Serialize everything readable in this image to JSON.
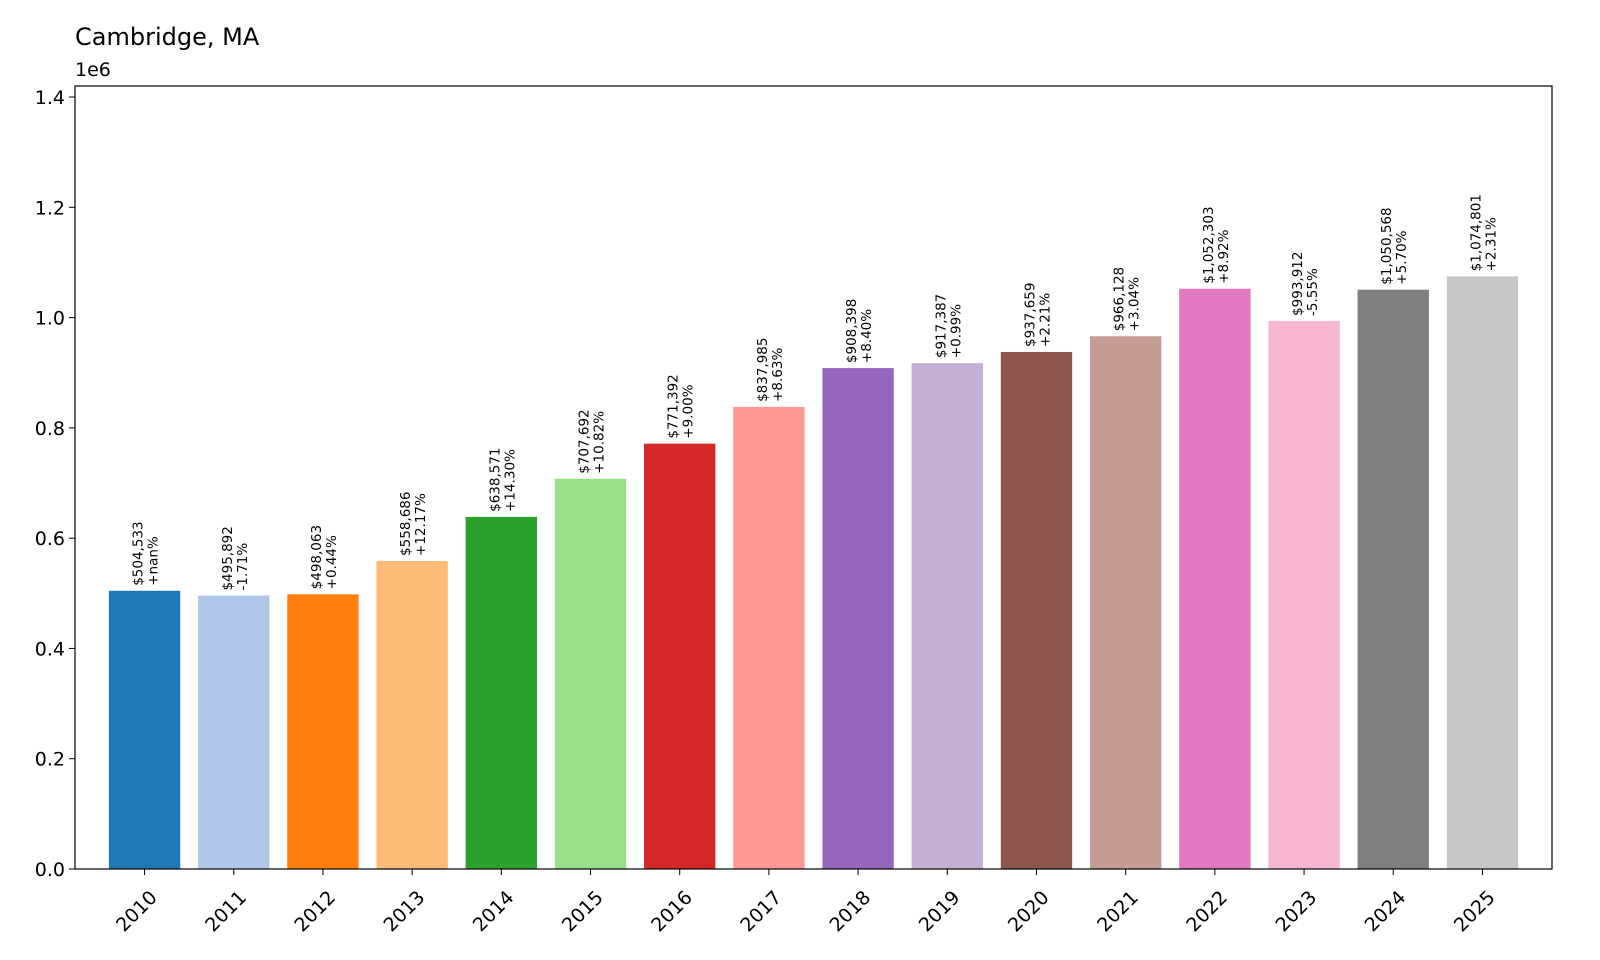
{
  "chart_data": {
    "type": "bar",
    "title": "Cambridge, MA",
    "y_offset_text": "1e6",
    "xlabel": "",
    "ylabel": "",
    "ylim": [
      0,
      1420000
    ],
    "yticks": [
      0,
      200000,
      400000,
      600000,
      800000,
      1000000,
      1200000,
      1400000
    ],
    "ytick_labels": [
      "0.0",
      "0.2",
      "0.4",
      "0.6",
      "0.8",
      "1.0",
      "1.2",
      "1.4"
    ],
    "grid": false,
    "categories": [
      "2010",
      "2011",
      "2012",
      "2013",
      "2014",
      "2015",
      "2016",
      "2017",
      "2018",
      "2019",
      "2020",
      "2021",
      "2022",
      "2023",
      "2024",
      "2025"
    ],
    "values": [
      504533,
      495892,
      498063,
      558686,
      638571,
      707692,
      771392,
      837985,
      908398,
      917387,
      937659,
      966128,
      1052303,
      993912,
      1050568,
      1074801
    ],
    "value_labels": [
      "$504,533",
      "$495,892",
      "$498,063",
      "$558,686",
      "$638,571",
      "$707,692",
      "$771,392",
      "$837,985",
      "$908,398",
      "$917,387",
      "$937,659",
      "$966,128",
      "$1,052,303",
      "$993,912",
      "$1,050,568",
      "$1,074,801"
    ],
    "change_labels": [
      "+nan%",
      "-1.71%",
      "+0.44%",
      "+12.17%",
      "+14.30%",
      "+10.82%",
      "+9.00%",
      "+8.63%",
      "+8.40%",
      "+0.99%",
      "+2.21%",
      "+3.04%",
      "+8.92%",
      "-5.55%",
      "+5.70%",
      "+2.31%"
    ],
    "colors": [
      "#1f77b4",
      "#aec7e8",
      "#ff7f0e",
      "#ffbb78",
      "#2ca02c",
      "#98df8a",
      "#d62728",
      "#ff9896",
      "#9467bd",
      "#c5b0d5",
      "#8c564b",
      "#c49c94",
      "#e377c2",
      "#f7b6d2",
      "#7f7f7f",
      "#c7c7c7"
    ]
  }
}
